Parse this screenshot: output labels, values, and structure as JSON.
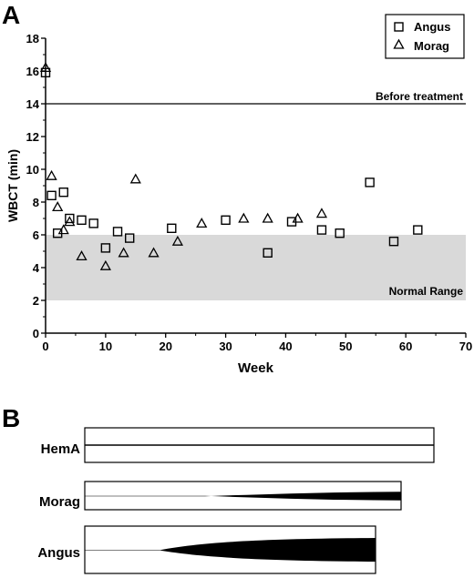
{
  "chart_data": [
    {
      "type": "scatter",
      "panel_label": "A",
      "xlabel": "Week",
      "ylabel": "WBCT (min)",
      "xlim": [
        0,
        70
      ],
      "ylim": [
        0,
        18
      ],
      "xticks": [
        0,
        10,
        20,
        30,
        40,
        50,
        60,
        70
      ],
      "yticks": [
        0,
        2,
        4,
        6,
        8,
        10,
        12,
        14,
        16,
        18
      ],
      "legend_position": "top-right",
      "reference_line": {
        "y": 14,
        "label": "Before treatment"
      },
      "shaded_band": {
        "y": [
          2,
          6
        ],
        "label": "Normal Range",
        "color": "#d9d9d9"
      },
      "series": [
        {
          "name": "Angus",
          "marker": "square",
          "points": [
            [
              0,
              15.9
            ],
            [
              1,
              8.4
            ],
            [
              2,
              6.1
            ],
            [
              3,
              8.6
            ],
            [
              4,
              7.0
            ],
            [
              6,
              6.9
            ],
            [
              8,
              6.7
            ],
            [
              10,
              5.2
            ],
            [
              12,
              6.2
            ],
            [
              14,
              5.8
            ],
            [
              21,
              6.4
            ],
            [
              30,
              6.9
            ],
            [
              37,
              4.9
            ],
            [
              41,
              6.8
            ],
            [
              46,
              6.3
            ],
            [
              49,
              6.1
            ],
            [
              54,
              9.2
            ],
            [
              58,
              5.6
            ],
            [
              62,
              6.3
            ]
          ]
        },
        {
          "name": "Morag",
          "marker": "triangle",
          "points": [
            [
              0,
              16.2
            ],
            [
              1,
              9.6
            ],
            [
              2,
              7.7
            ],
            [
              3,
              6.3
            ],
            [
              4,
              6.8
            ],
            [
              6,
              4.7
            ],
            [
              10,
              4.1
            ],
            [
              13,
              4.9
            ],
            [
              15,
              9.4
            ],
            [
              18,
              4.9
            ],
            [
              22,
              5.6
            ],
            [
              26,
              6.7
            ],
            [
              33,
              7.0
            ],
            [
              37,
              7.0
            ],
            [
              42,
              7.0
            ],
            [
              46,
              7.3
            ]
          ]
        }
      ]
    },
    {
      "type": "diagram",
      "panel_label": "B",
      "rows": [
        {
          "label": "HemA",
          "onset": null,
          "max_thickness": 0
        },
        {
          "label": "Morag",
          "onset": 0.38,
          "max_thickness": 0.55
        },
        {
          "label": "Angus",
          "onset": 0.26,
          "max_thickness": 0.45
        }
      ]
    }
  ]
}
